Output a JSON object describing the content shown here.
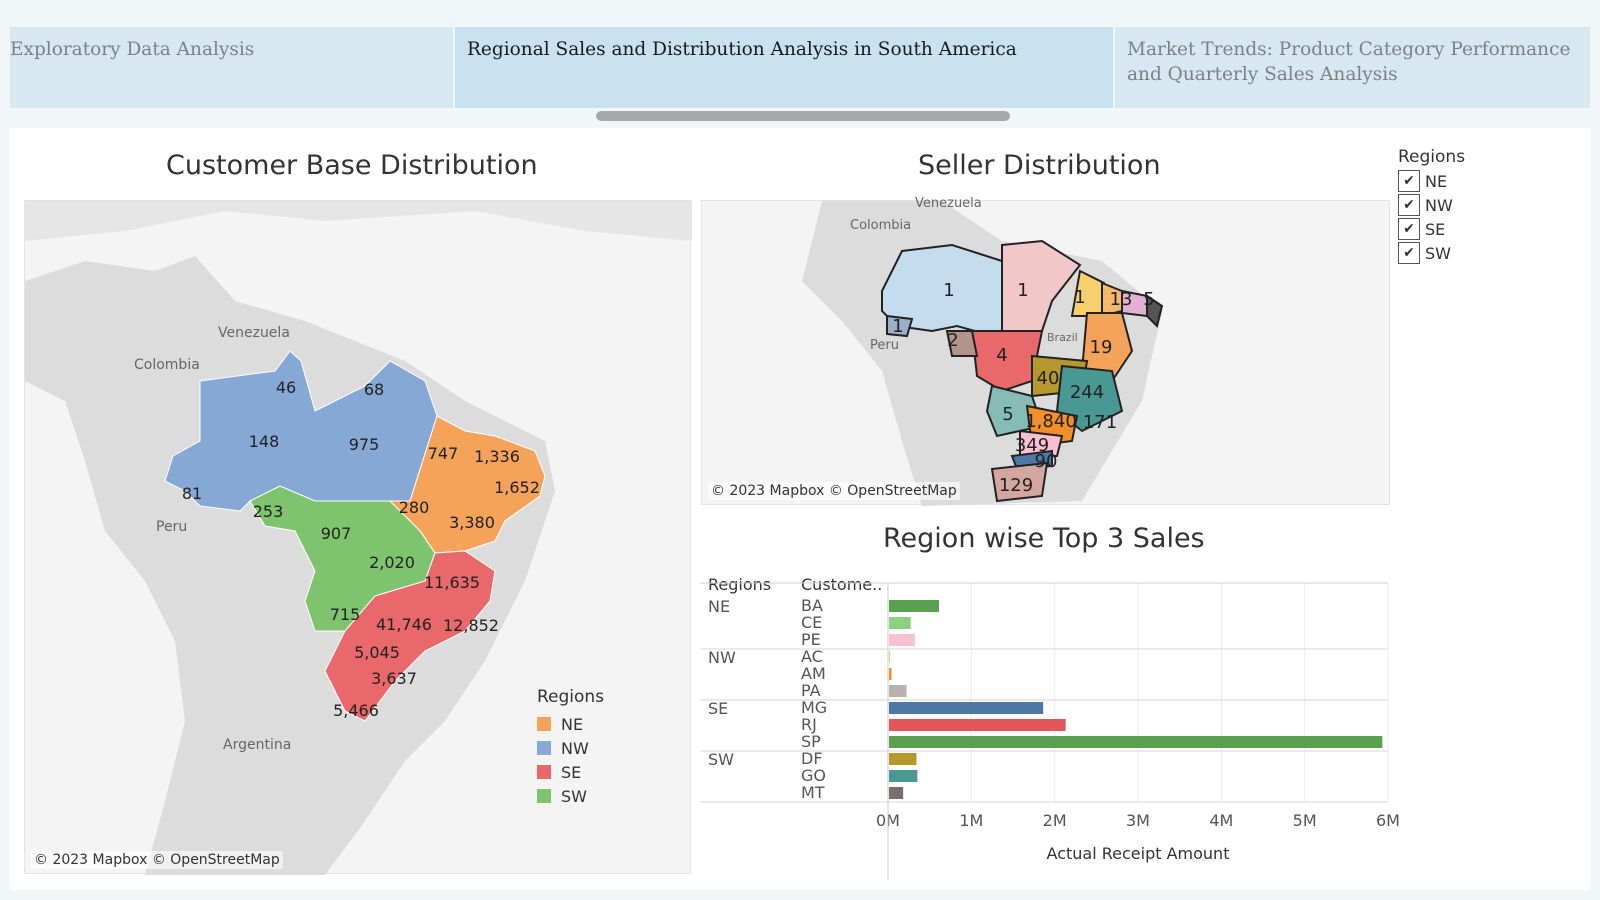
{
  "tabs": [
    {
      "label": "Exploratory Data Analysis",
      "active": false
    },
    {
      "label": "Regional Sales and Distribution Analysis in South America",
      "active": true
    },
    {
      "label": "Market Trends: Product Category Performance and Quarterly Sales Analysis",
      "active": false
    }
  ],
  "colors": {
    "NE": "#f5a35b",
    "NW": "#86a8d4",
    "SE": "#e8686b",
    "SW": "#7ec46f"
  },
  "customer_map": {
    "title": "Customer Base Distribution",
    "copyright": "© 2023 Mapbox © OpenStreetMap",
    "country_labels": [
      "Venezuela",
      "Colombia",
      "Peru",
      "Argentina"
    ],
    "values": [
      "46",
      "68",
      "148",
      "975",
      "81",
      "747",
      "1,336",
      "1,652",
      "280",
      "3,380",
      "253",
      "907",
      "2,020",
      "11,635",
      "715",
      "41,746",
      "12,852",
      "5,045",
      "3,637",
      "5,466"
    ],
    "legend": {
      "title": "Regions",
      "items": [
        "NE",
        "NW",
        "SE",
        "SW"
      ]
    }
  },
  "seller_map": {
    "title": "Seller Distribution",
    "copyright": "© 2023 Mapbox © OpenStreetMap",
    "country_labels": [
      "Venezuela",
      "Colombia",
      "Peru",
      "Brazil"
    ],
    "values": [
      "1",
      "1",
      "1",
      "13",
      "5",
      "1",
      "2",
      "4",
      "19",
      "40",
      "244",
      "5",
      "1,840",
      "171",
      "349",
      "90",
      "129"
    ]
  },
  "filter": {
    "title": "Regions",
    "items": [
      "NE",
      "NW",
      "SE",
      "SW"
    ]
  },
  "bar_chart": {
    "title": "Region wise Top 3 Sales",
    "col_regions": "Regions",
    "col_customer": "Custome..",
    "xlabel": "Actual Receipt Amount",
    "ticks": [
      "0M",
      "1M",
      "2M",
      "3M",
      "4M",
      "5M",
      "6M"
    ]
  },
  "chart_data": {
    "type": "bar",
    "orientation": "horizontal",
    "title": "Region wise Top 3 Sales",
    "xlabel": "Actual Receipt Amount",
    "xlim": [
      0,
      6000000
    ],
    "groups": [
      {
        "region": "NE",
        "states": [
          {
            "state": "BA",
            "value": 600000,
            "color": "#59a14f"
          },
          {
            "state": "CE",
            "value": 260000,
            "color": "#8cd17d"
          },
          {
            "state": "PE",
            "value": 310000,
            "color": "#fabfd2"
          }
        ]
      },
      {
        "region": "NW",
        "states": [
          {
            "state": "AC",
            "value": 10000,
            "color": "#f1ce63"
          },
          {
            "state": "AM",
            "value": 30000,
            "color": "#f28e2b"
          },
          {
            "state": "PA",
            "value": 210000,
            "color": "#bab0ac"
          }
        ]
      },
      {
        "region": "SE",
        "states": [
          {
            "state": "MG",
            "value": 1850000,
            "color": "#4e79a7"
          },
          {
            "state": "RJ",
            "value": 2120000,
            "color": "#e15759"
          },
          {
            "state": "SP",
            "value": 5920000,
            "color": "#59a14f"
          }
        ]
      },
      {
        "region": "SW",
        "states": [
          {
            "state": "DF",
            "value": 330000,
            "color": "#b6992d"
          },
          {
            "state": "GO",
            "value": 340000,
            "color": "#499894"
          },
          {
            "state": "MT",
            "value": 170000,
            "color": "#79706e"
          }
        ]
      }
    ]
  }
}
